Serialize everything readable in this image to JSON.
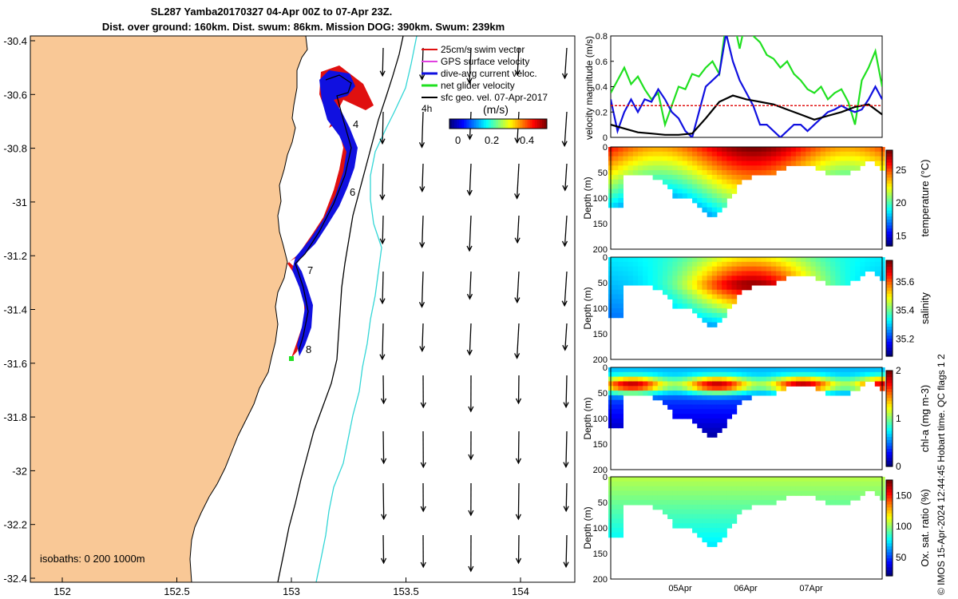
{
  "title": {
    "line1": "SL287 Yamba20170327 04-Apr 00Z to 07-Apr 23Z.",
    "line2": "Dist. over ground: 160km. Dist. swum: 86km. Mission DOG: 390km. Swum: 239km"
  },
  "credit": "© IMOS 15-Apr-2024 12:44:45 Hobart time. QC flags 1  2",
  "colors": {
    "land": "#f9c896",
    "isobath_200": "#000000",
    "isobath_1000": "#33d6d6",
    "swim_vector": "#e01010",
    "gps_velocity": "#e040e0",
    "dive_avg": "#1010e0",
    "net_glider": "#20e020",
    "sfc_geo": "#000000"
  },
  "map": {
    "xticks": [
      "152",
      "152.5",
      "153",
      "153.5",
      "154"
    ],
    "yticks": [
      "-30.4",
      "-30.6",
      "-30.8",
      "-31",
      "-31.2",
      "-31.4",
      "-31.6",
      "-31.8",
      "-32",
      "-32.2",
      "-32.4"
    ],
    "isobaths_text": "isobaths: 0   200  1000m",
    "legend": [
      {
        "label": "25cm/s swim vector",
        "color": "#e01010"
      },
      {
        "label": "GPS surface velocity",
        "color": "#e040e0"
      },
      {
        "label": "dive-avg current veloc.",
        "color": "#1010e0"
      },
      {
        "label": "net glider velocity",
        "color": "#20e020"
      },
      {
        "label": "sfc geo. vel. 07-Apr-2017",
        "color": "#000000"
      }
    ],
    "colorbar_title": "(m/s)",
    "colorbar_ticks": [
      "0",
      "0.2",
      "0.4"
    ],
    "day_labels": [
      "4",
      "6",
      "7",
      "8"
    ],
    "hour_label": "4h"
  },
  "chart_data": [
    {
      "type": "line",
      "title": "",
      "xlabel": "",
      "ylabel": "velocity magnitude (m/s)",
      "ylim": [
        0,
        0.8
      ],
      "yticks": [
        "0",
        "0.2",
        "0.4",
        "0.6",
        "0.8"
      ],
      "xlim": [
        4.0,
        8.0
      ],
      "series": [
        {
          "name": "net glider velocity",
          "color": "#20e020",
          "x": [
            4.0,
            4.1,
            4.2,
            4.3,
            4.4,
            4.5,
            4.6,
            4.7,
            4.8,
            4.9,
            5.0,
            5.1,
            5.2,
            5.3,
            5.4,
            5.5,
            5.6,
            5.7,
            5.8,
            5.9,
            6.0,
            6.1,
            6.2,
            6.3,
            6.4,
            6.5,
            6.6,
            6.7,
            6.8,
            6.9,
            7.0,
            7.1,
            7.2,
            7.3,
            7.4,
            7.5,
            7.6,
            7.7,
            7.8,
            7.9,
            8.0
          ],
          "values": [
            0.35,
            0.45,
            0.55,
            0.42,
            0.48,
            0.38,
            0.3,
            0.35,
            0.1,
            0.25,
            0.4,
            0.38,
            0.5,
            0.48,
            0.55,
            0.6,
            0.5,
            0.9,
            0.95,
            0.7,
            0.95,
            0.8,
            0.75,
            0.65,
            0.62,
            0.55,
            0.6,
            0.5,
            0.45,
            0.38,
            0.35,
            0.4,
            0.3,
            0.35,
            0.38,
            0.28,
            0.1,
            0.45,
            0.55,
            0.68,
            0.4
          ]
        },
        {
          "name": "dive-avg current veloc.",
          "color": "#1010e0",
          "x": [
            4.0,
            4.1,
            4.2,
            4.3,
            4.4,
            4.5,
            4.6,
            4.7,
            4.8,
            4.9,
            5.0,
            5.1,
            5.2,
            5.3,
            5.4,
            5.5,
            5.6,
            5.7,
            5.8,
            5.9,
            6.0,
            6.1,
            6.2,
            6.3,
            6.4,
            6.5,
            6.6,
            6.7,
            6.8,
            6.9,
            7.0,
            7.1,
            7.2,
            7.3,
            7.4,
            7.5,
            7.6,
            7.7,
            7.8,
            7.9,
            8.0
          ],
          "values": [
            0.3,
            0.05,
            0.2,
            0.3,
            0.2,
            0.3,
            0.28,
            0.38,
            0.3,
            0.2,
            0.15,
            0.05,
            0.0,
            0.2,
            0.4,
            0.45,
            0.5,
            0.82,
            0.6,
            0.45,
            0.35,
            0.25,
            0.1,
            0.1,
            0.05,
            0.0,
            0.05,
            0.1,
            0.1,
            0.05,
            0.1,
            0.15,
            0.2,
            0.22,
            0.25,
            0.22,
            0.2,
            0.22,
            0.3,
            0.4,
            0.3
          ]
        },
        {
          "name": "sfc geo. vel.",
          "color": "#000000",
          "x": [
            4.0,
            4.2,
            4.4,
            4.6,
            4.8,
            5.0,
            5.2,
            5.4,
            5.6,
            5.8,
            6.0,
            6.2,
            6.4,
            6.6,
            6.8,
            7.0,
            7.2,
            7.4,
            7.6,
            7.8,
            8.0
          ],
          "values": [
            0.1,
            0.07,
            0.04,
            0.03,
            0.02,
            0.02,
            0.03,
            0.15,
            0.28,
            0.33,
            0.3,
            0.28,
            0.26,
            0.22,
            0.18,
            0.14,
            0.17,
            0.2,
            0.24,
            0.26,
            0.18
          ]
        },
        {
          "name": "25cm/s swim vector",
          "color": "#e01010",
          "dashed": true,
          "x": [
            4.0,
            8.0
          ],
          "values": [
            0.25,
            0.25
          ]
        }
      ]
    },
    {
      "type": "heatmap",
      "ylabel": "Depth (m)",
      "colorbar_label": "temperature (°C)",
      "clim": [
        13.5,
        28
      ],
      "colorbar_ticks": [
        "15",
        "20",
        "25"
      ],
      "yticks": [
        "0",
        "50",
        "100",
        "150",
        "200"
      ],
      "xticks": [
        "05Apr",
        "06Apr",
        "07Apr"
      ]
    },
    {
      "type": "heatmap",
      "ylabel": "Depth (m)",
      "colorbar_label": "salinity",
      "clim": [
        35.08,
        35.75
      ],
      "colorbar_ticks": [
        "35.2",
        "35.4",
        "35.6"
      ],
      "yticks": [
        "0",
        "50",
        "100",
        "150",
        "200"
      ],
      "xticks": [
        "05Apr",
        "06Apr",
        "07Apr"
      ]
    },
    {
      "type": "heatmap",
      "ylabel": "Depth (m)",
      "colorbar_label": "chl-a (mg m-3)",
      "clim": [
        0,
        2
      ],
      "colorbar_ticks": [
        "0",
        "1",
        "2"
      ],
      "yticks": [
        "0",
        "50",
        "100",
        "150",
        "200"
      ],
      "xticks": [
        "05Apr",
        "06Apr",
        "07Apr"
      ]
    },
    {
      "type": "heatmap",
      "ylabel": "Depth (m)",
      "colorbar_label": "Ox. sat. ratio (%)",
      "clim": [
        20,
        175
      ],
      "colorbar_ticks": [
        "50",
        "100",
        "150"
      ],
      "yticks": [
        "0",
        "50",
        "100",
        "150",
        "200"
      ],
      "xticks": [
        "05Apr",
        "06Apr",
        "07Apr"
      ]
    }
  ]
}
